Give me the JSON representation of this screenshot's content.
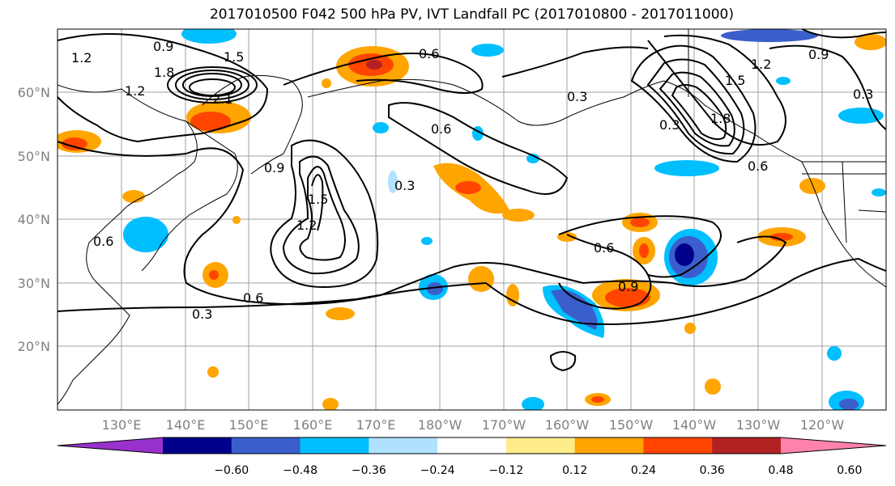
{
  "title": "2017010500 F042 500 hPa PV, IVT Landfall PC (2017010800 - 2017011000)",
  "map": {
    "lat_labels": [
      "60°N",
      "50°N",
      "40°N",
      "30°N",
      "20°N"
    ],
    "lon_labels": [
      "130°E",
      "140°E",
      "150°E",
      "160°E",
      "170°E",
      "180°W",
      "170°W",
      "160°W",
      "150°W",
      "140°W",
      "130°W",
      "120°W"
    ],
    "contour_labels": [
      "0.9",
      "1.2",
      "1.5",
      "1.8",
      "2.1",
      "0.6",
      "0.3",
      "1.2",
      "0.9",
      "0.6",
      "0.3",
      "1.2",
      "1.5",
      "0.6",
      "0.3",
      "0.6",
      "0.9",
      "0.3",
      "0.6",
      "1.2",
      "1.5",
      "1.8",
      "0.9",
      "0.6",
      "0.3"
    ]
  },
  "colorbar": {
    "ticks": [
      "−0.60",
      "−0.48",
      "−0.36",
      "−0.24",
      "−0.12",
      "0.12",
      "0.24",
      "0.36",
      "0.48",
      "0.60"
    ],
    "colors": [
      "#9932CC",
      "#00008B",
      "#3A5FCD",
      "#00BFFF",
      "#B0E2FF",
      "#FFFFFF",
      "#FFEC8B",
      "#FFA500",
      "#FF4500",
      "#B22222",
      "#FF82AB"
    ]
  }
}
